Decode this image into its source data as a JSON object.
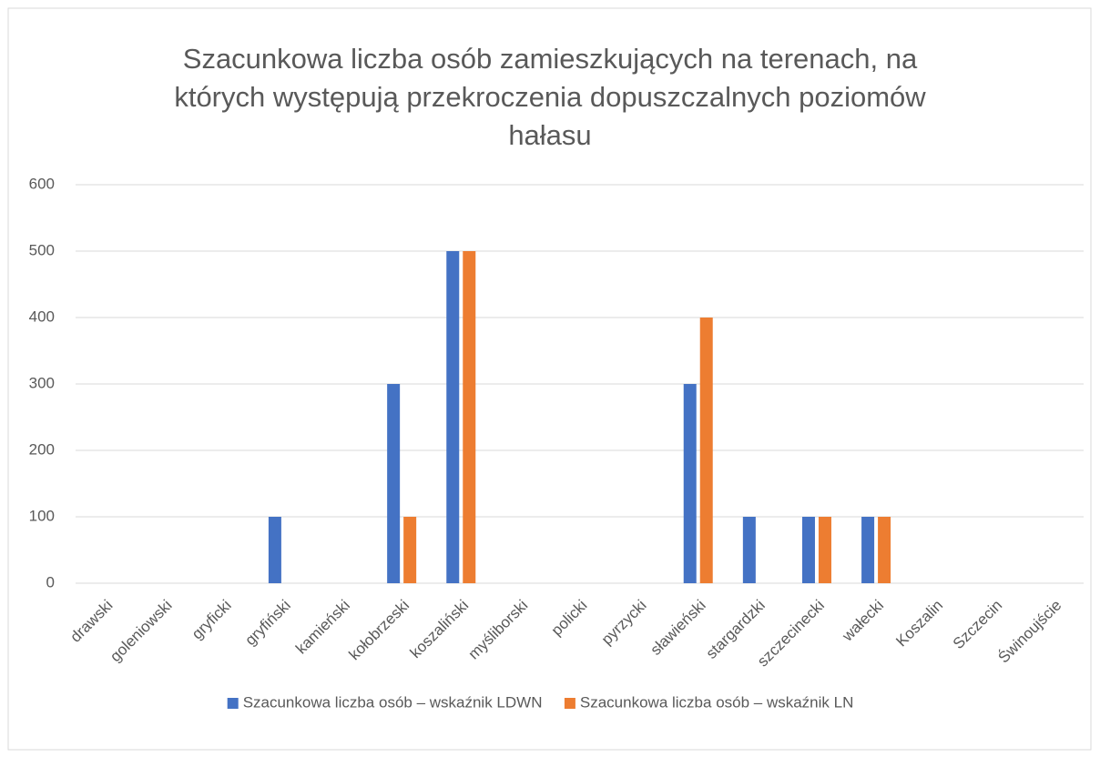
{
  "chart_data": {
    "type": "bar",
    "title": "Szacunkowa liczba osób zamieszkujących na terenach, na których występują przekroczenia dopuszczalnych poziomów hałasu",
    "categories": [
      "drawski",
      "goleniowski",
      "gryficki",
      "gryfiński",
      "kamieński",
      "kołobrzeski",
      "koszaliński",
      "myśliborski",
      "policki",
      "pyrzycki",
      "sławieński",
      "stargardzki",
      "szczecinecki",
      "wałecki",
      "Koszalin",
      "Szczecin",
      "Świnoujście"
    ],
    "series": [
      {
        "name": "Szacunkowa liczba osób – wskaźnik LDWN",
        "color": "#4472c4",
        "values": [
          0,
          0,
          0,
          100,
          0,
          300,
          500,
          0,
          0,
          0,
          300,
          100,
          100,
          100,
          0,
          0,
          0
        ]
      },
      {
        "name": "Szacunkowa liczba osób – wskaźnik LN",
        "color": "#ed7d31",
        "values": [
          0,
          0,
          0,
          0,
          0,
          100,
          500,
          0,
          0,
          0,
          400,
          0,
          100,
          100,
          0,
          0,
          0
        ]
      }
    ],
    "ylim": [
      0,
      600
    ],
    "yticks": [
      0,
      100,
      200,
      300,
      400,
      500,
      600
    ],
    "grid": true,
    "legend": "bottom"
  }
}
